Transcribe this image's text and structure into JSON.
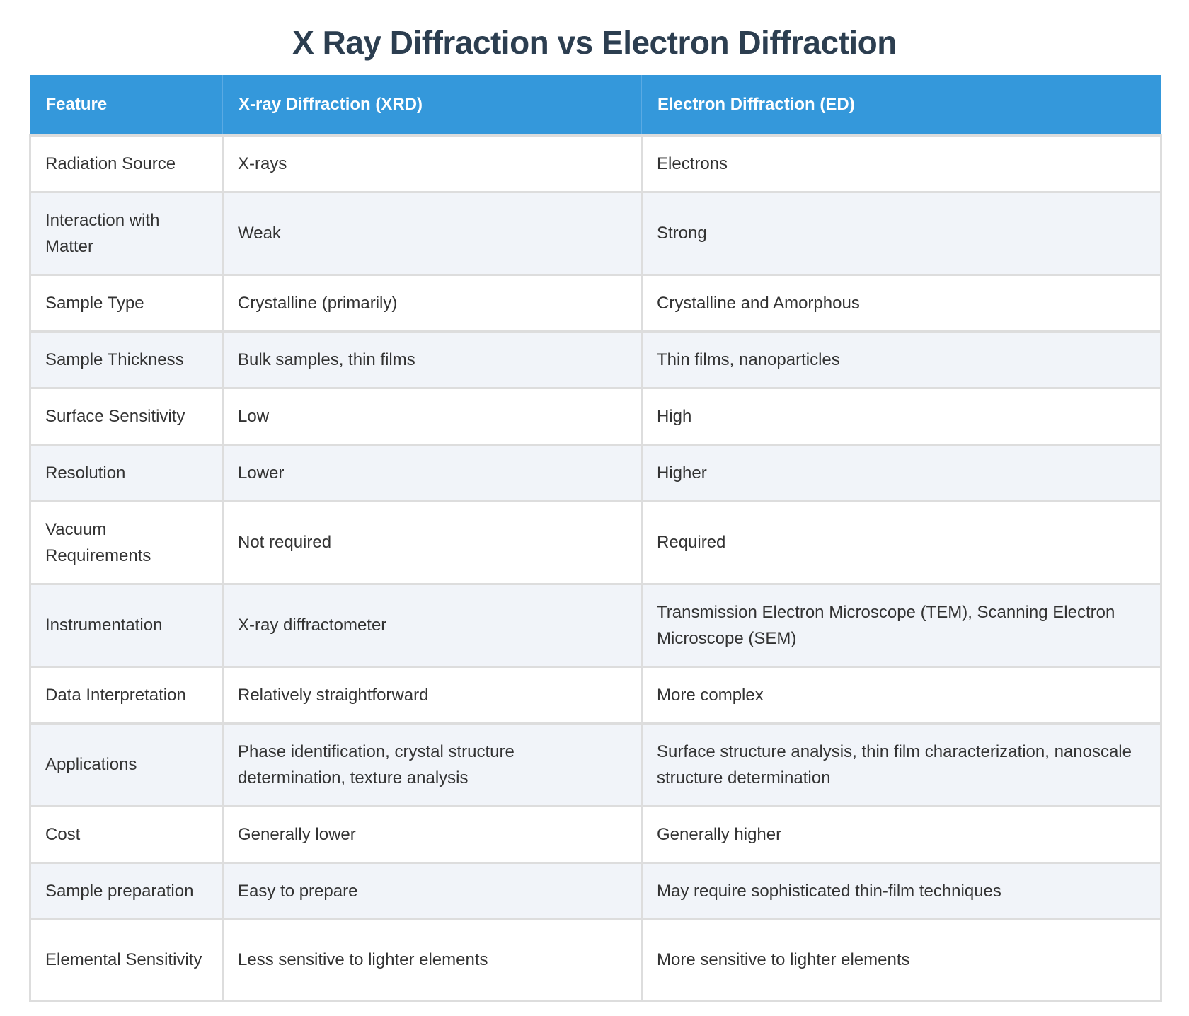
{
  "title": "X Ray Diffraction vs Electron Diffraction",
  "colors": {
    "header_bg": "#3498db",
    "title": "#2c3e50",
    "stripe": "#f1f4f9",
    "border": "#dddddd",
    "text": "#333333"
  },
  "table": {
    "headers": [
      "Feature",
      "X-ray Diffraction (XRD)",
      "Electron Diffraction (ED)"
    ],
    "rows": [
      [
        "Radiation Source",
        "X-rays",
        "Electrons"
      ],
      [
        "Interaction with Matter",
        "Weak",
        "Strong"
      ],
      [
        "Sample Type",
        "Crystalline (primarily)",
        "Crystalline and Amorphous"
      ],
      [
        "Sample Thickness",
        "Bulk samples, thin films",
        "Thin films, nanoparticles"
      ],
      [
        "Surface Sensitivity",
        "Low",
        "High"
      ],
      [
        "Resolution",
        "Lower",
        "Higher"
      ],
      [
        "Vacuum Requirements",
        "Not required",
        "Required"
      ],
      [
        "Instrumentation",
        "X-ray diffractometer",
        "Transmission Electron Microscope (TEM), Scanning Electron Microscope (SEM)"
      ],
      [
        "Data Interpretation",
        "Relatively straightforward",
        "More complex"
      ],
      [
        "Applications",
        "Phase identification, crystal structure determination, texture analysis",
        "Surface structure analysis, thin film characterization, nanoscale structure determination"
      ],
      [
        "Cost",
        "Generally lower",
        "Generally higher"
      ],
      [
        "Sample preparation",
        "Easy to prepare",
        "May require sophisticated thin-film techniques"
      ],
      [
        "Elemental Sensitivity",
        "Less sensitive to lighter elements",
        "More sensitive to lighter elements"
      ]
    ]
  }
}
